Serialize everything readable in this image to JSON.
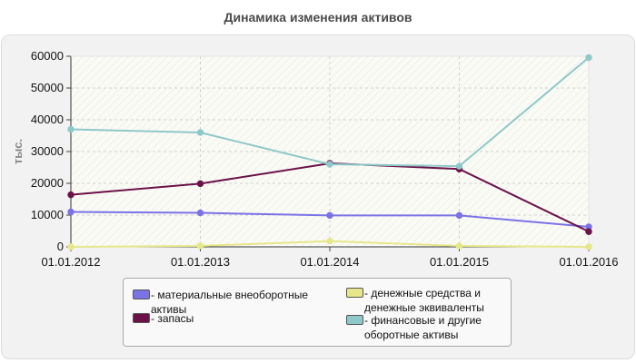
{
  "chart_data": {
    "type": "line",
    "title": "Динамика изменения активов",
    "xlabel": "",
    "ylabel": "тыс.",
    "categories": [
      "01.01.2012",
      "01.01.2013",
      "01.01.2014",
      "01.01.2015",
      "01.01.2016"
    ],
    "ylim": [
      0,
      60000
    ],
    "yticks": [
      0,
      10000,
      20000,
      30000,
      40000,
      50000,
      60000
    ],
    "grid": true,
    "legend_position": "bottom",
    "series": [
      {
        "name": "- материальные внеоборотные активы",
        "color": "#7b72e6",
        "values": [
          11000,
          10700,
          9900,
          9900,
          6300
        ]
      },
      {
        "name": "- запасы",
        "color": "#6b1248",
        "values": [
          16400,
          19900,
          26300,
          24500,
          4800
        ]
      },
      {
        "name": "- денежные средства и денежные эквиваленты",
        "color": "#e6e68a",
        "values": [
          0,
          300,
          1800,
          300,
          0
        ]
      },
      {
        "name": "- финансовые и другие оборотные активы",
        "color": "#8ec8c8",
        "values": [
          37000,
          36000,
          26000,
          25400,
          59600
        ]
      }
    ]
  }
}
